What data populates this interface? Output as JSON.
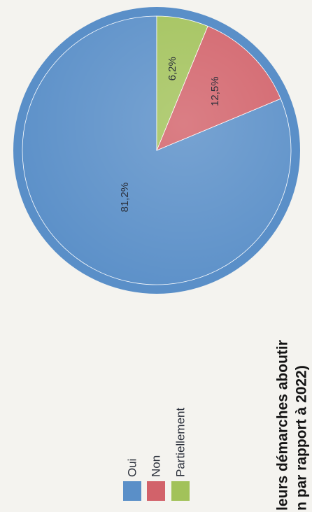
{
  "chart_data": {
    "type": "pie",
    "categories": [
      "Oui",
      "Non",
      "Partiellement"
    ],
    "values": [
      81.2,
      12.5,
      6.2
    ],
    "value_labels": [
      "81,2%",
      "12,5%",
      "6,2%"
    ],
    "colors": [
      "#5a8fc8",
      "#d2626a",
      "#a2c25a"
    ],
    "legend_position": "left",
    "title_lines": [
      "leurs démarches aboutir",
      "n par rapport à 2022)"
    ]
  }
}
